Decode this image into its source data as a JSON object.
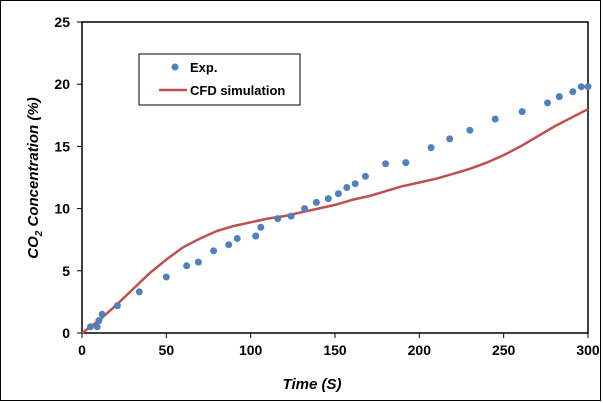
{
  "chart_data": {
    "type": "scatter+line",
    "xlabel": "Time (S)",
    "ylabel_main": "CO",
    "ylabel_sub": "2",
    "ylabel_rest": " Concentration (%)",
    "xlim": [
      0,
      300
    ],
    "ylim": [
      0,
      25
    ],
    "xticks": [
      0,
      50,
      100,
      150,
      200,
      250,
      300
    ],
    "yticks": [
      0,
      5,
      10,
      15,
      20,
      25
    ],
    "grid": false,
    "legend_position": "top-left",
    "series": [
      {
        "name": "Exp.",
        "kind": "scatter",
        "color": "#4F81BD",
        "x": [
          5,
          9,
          10,
          12,
          21,
          34,
          50,
          62,
          69,
          78,
          87,
          92,
          103,
          106,
          116,
          124,
          132,
          139,
          146,
          152,
          157,
          162,
          168,
          180,
          192,
          207,
          218,
          230,
          245,
          261,
          276,
          283,
          291,
          296,
          300
        ],
        "y": [
          0.5,
          0.5,
          1.0,
          1.5,
          2.2,
          3.3,
          4.5,
          5.4,
          5.7,
          6.6,
          7.1,
          7.6,
          7.8,
          8.5,
          9.2,
          9.4,
          10.0,
          10.5,
          10.8,
          11.2,
          11.7,
          12.0,
          12.6,
          13.6,
          13.7,
          14.9,
          15.6,
          16.3,
          17.2,
          17.8,
          18.5,
          19.0,
          19.4,
          19.8,
          19.8
        ]
      },
      {
        "name": "CFD simulation",
        "kind": "line",
        "color": "#C0504D",
        "x": [
          0,
          10,
          20,
          30,
          40,
          50,
          60,
          70,
          80,
          90,
          100,
          110,
          120,
          130,
          140,
          150,
          160,
          170,
          180,
          190,
          200,
          210,
          220,
          230,
          240,
          250,
          260,
          270,
          280,
          290,
          300
        ],
        "y": [
          0,
          1.0,
          2.2,
          3.5,
          4.8,
          5.9,
          6.9,
          7.6,
          8.2,
          8.6,
          8.9,
          9.2,
          9.4,
          9.7,
          10.0,
          10.3,
          10.7,
          11.0,
          11.4,
          11.8,
          12.1,
          12.4,
          12.8,
          13.2,
          13.7,
          14.3,
          15.0,
          15.8,
          16.6,
          17.3,
          18.0
        ]
      }
    ]
  }
}
